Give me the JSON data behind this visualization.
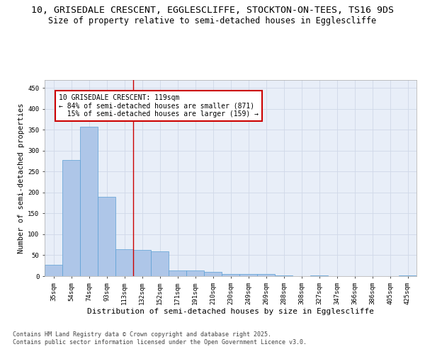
{
  "title_line1": "10, GRISEDALE CRESCENT, EGGLESCLIFFE, STOCKTON-ON-TEES, TS16 9DS",
  "title_line2": "Size of property relative to semi-detached houses in Egglescliffe",
  "xlabel": "Distribution of semi-detached houses by size in Egglescliffe",
  "ylabel": "Number of semi-detached properties",
  "categories": [
    "35sqm",
    "54sqm",
    "74sqm",
    "93sqm",
    "113sqm",
    "132sqm",
    "152sqm",
    "171sqm",
    "191sqm",
    "210sqm",
    "230sqm",
    "249sqm",
    "269sqm",
    "288sqm",
    "308sqm",
    "327sqm",
    "347sqm",
    "366sqm",
    "386sqm",
    "405sqm",
    "425sqm"
  ],
  "values": [
    27,
    278,
    358,
    190,
    65,
    62,
    60,
    13,
    13,
    10,
    5,
    5,
    5,
    2,
    0,
    2,
    0,
    0,
    0,
    0,
    2
  ],
  "bar_color": "#aec6e8",
  "bar_edge_color": "#5a9fd4",
  "property_line_x": 4.5,
  "annotation_text": "10 GRISEDALE CRESCENT: 119sqm\n← 84% of semi-detached houses are smaller (871)\n  15% of semi-detached houses are larger (159) →",
  "annotation_box_color": "#ffffff",
  "annotation_box_edge_color": "#cc0000",
  "vline_color": "#cc0000",
  "grid_color": "#d0d8e8",
  "background_color": "#e8eef8",
  "fig_background_color": "#ffffff",
  "footer_text": "Contains HM Land Registry data © Crown copyright and database right 2025.\nContains public sector information licensed under the Open Government Licence v3.0.",
  "ylim": [
    0,
    470
  ],
  "title_fontsize": 9.5,
  "subtitle_fontsize": 8.5,
  "xlabel_fontsize": 8,
  "ylabel_fontsize": 7.5,
  "tick_fontsize": 6.5,
  "annotation_fontsize": 7,
  "footer_fontsize": 6
}
